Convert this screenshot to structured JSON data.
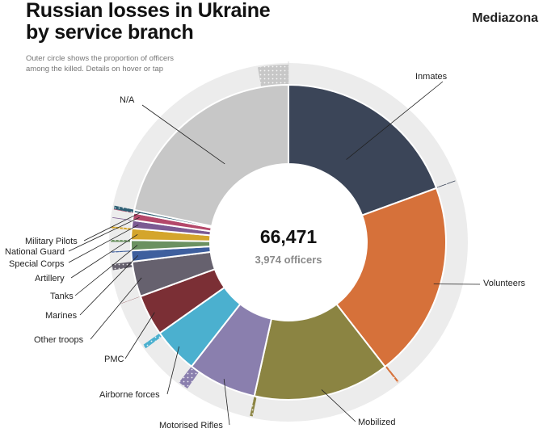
{
  "header": {
    "title_line1": "Russian losses in Ukraine",
    "title_line2": "by service branch",
    "brand": "Mediazona",
    "subtitle_line1": "Outer circle shows the proportion of officers",
    "subtitle_line2": "among the killed. Details on hover or tap"
  },
  "chart_data": {
    "type": "pie",
    "variant": "donut-with-outer-officer-ring",
    "center_total": "66,471",
    "center_subtitle": "3,974 officers",
    "total_killed": 66471,
    "total_officers": 3974,
    "series": [
      {
        "name": "Inmates",
        "value": 12900,
        "officers": 40,
        "color": "#3b4558"
      },
      {
        "name": "Volunteers",
        "value": 13350,
        "officers": 110,
        "color": "#d6713a"
      },
      {
        "name": "Mobilized",
        "value": 9300,
        "officers": 170,
        "color": "#8b8442"
      },
      {
        "name": "Motorised Rifles",
        "value": 4700,
        "officers": 620,
        "color": "#8a7fae"
      },
      {
        "name": "Airborne forces",
        "value": 3100,
        "officers": 260,
        "color": "#4bb0cf"
      },
      {
        "name": "PMC",
        "value": 2800,
        "officers": 15,
        "color": "#7b2f35"
      },
      {
        "name": "Other troops",
        "value": 2400,
        "officers": 360,
        "color": "#66616e"
      },
      {
        "name": "Marines",
        "value": 750,
        "officers": 60,
        "color": "#3e5f9e"
      },
      {
        "name": "Tanks",
        "value": 700,
        "officers": 120,
        "color": "#6b9161"
      },
      {
        "name": "Artillery",
        "value": 800,
        "officers": 110,
        "color": "#d4a52c"
      },
      {
        "name": "Special Corps",
        "value": 550,
        "officers": 40,
        "color": "#7c5b93"
      },
      {
        "name": "National Guard",
        "value": 500,
        "officers": 30,
        "color": "#b4486a"
      },
      {
        "name": "Military Pilots",
        "value": 200,
        "officers": 200,
        "color": "#2e5f74"
      },
      {
        "name": "N/A",
        "value": 14421,
        "officers": 1839,
        "color": "#c7c7c7"
      }
    ]
  }
}
